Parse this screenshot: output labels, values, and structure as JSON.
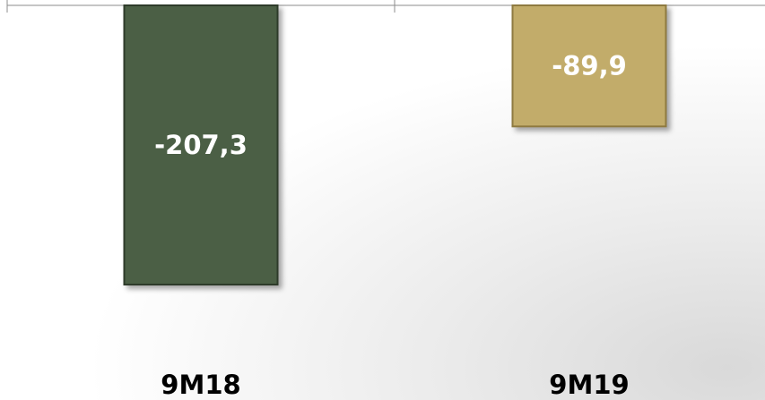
{
  "chart_data": {
    "type": "bar",
    "categories": [
      "9M18",
      "9M19"
    ],
    "values": [
      -207.3,
      -89.9
    ],
    "value_labels": [
      "-207,3",
      "-89,9"
    ],
    "ylim": [
      -207.3,
      0
    ],
    "grid": false,
    "legend": "none",
    "colors": [
      "#4c5e44",
      "#c2ac6b"
    ],
    "edge_colors": [
      "#2f3b29",
      "#8e7a40"
    ]
  }
}
